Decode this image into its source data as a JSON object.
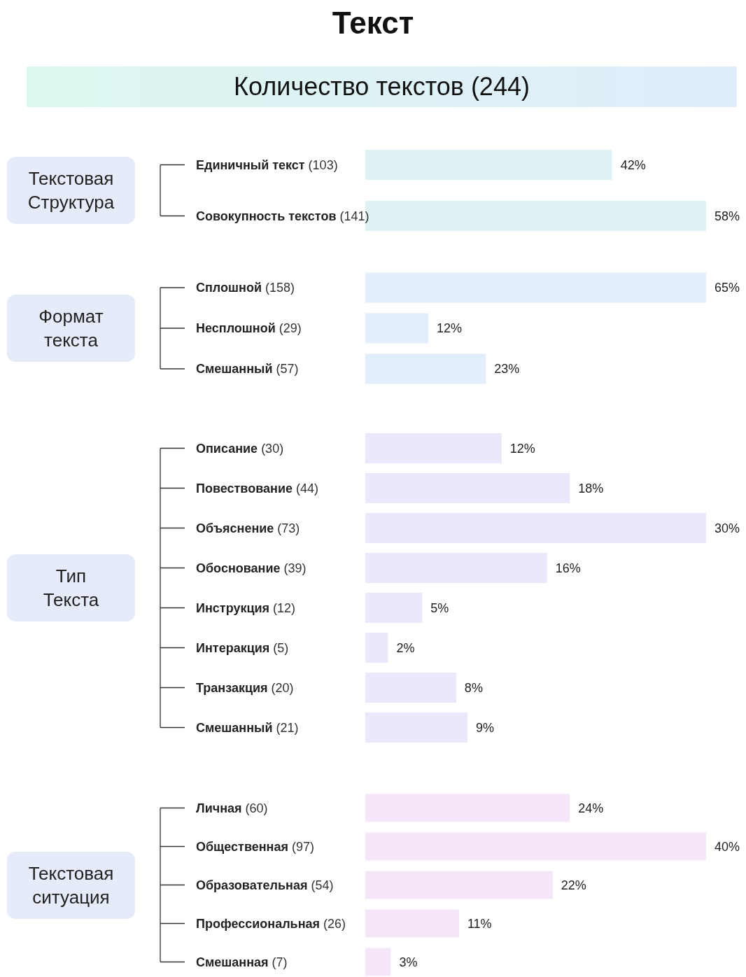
{
  "chart_data": [
    {
      "type": "other",
      "title": "Текст",
      "subtitle": "Количество текстов (244)"
    },
    {
      "type": "bar",
      "orientation": "horizontal",
      "title": "Текстовая Структура",
      "categories": [
        "Единичный текст (103)",
        "Совокупность текстов (141)"
      ],
      "values": [
        42,
        58
      ],
      "value_labels": [
        "42%",
        "58%"
      ],
      "color": "#dff3f4"
    },
    {
      "type": "bar",
      "orientation": "horizontal",
      "title": "Формат текста",
      "categories": [
        "Сплошной (158)",
        "Несплошной (29)",
        "Смешанный (57)"
      ],
      "values": [
        65,
        12,
        23
      ],
      "value_labels": [
        "65%",
        "12%",
        "23%"
      ],
      "color": "#e2eefb"
    },
    {
      "type": "bar",
      "orientation": "horizontal",
      "title": "Тип Текста",
      "categories": [
        "Описание (30)",
        "Повествование (44)",
        "Объяснение (73)",
        "Обоснование (39)",
        "Инструкция (12)",
        "Интеракция (5)",
        "Транзакция (20)",
        "Смешанный (21)"
      ],
      "values": [
        12,
        18,
        30,
        16,
        5,
        2,
        8,
        9
      ],
      "value_labels": [
        "12%",
        "18%",
        "30%",
        "16%",
        "5%",
        "2%",
        "8%",
        "9%"
      ],
      "color": "#ebe8fb"
    },
    {
      "type": "bar",
      "orientation": "horizontal",
      "title": "Текстовая ситуация",
      "categories": [
        "Личная (60)",
        "Общественная (97)",
        "Образовательная (54)",
        "Профессиональная (26)",
        "Смешанная (7)"
      ],
      "values": [
        24,
        40,
        22,
        11,
        3
      ],
      "value_labels": [
        "24%",
        "40%",
        "22%",
        "11%",
        "3%"
      ],
      "color": "#f5e6fa"
    }
  ]
}
